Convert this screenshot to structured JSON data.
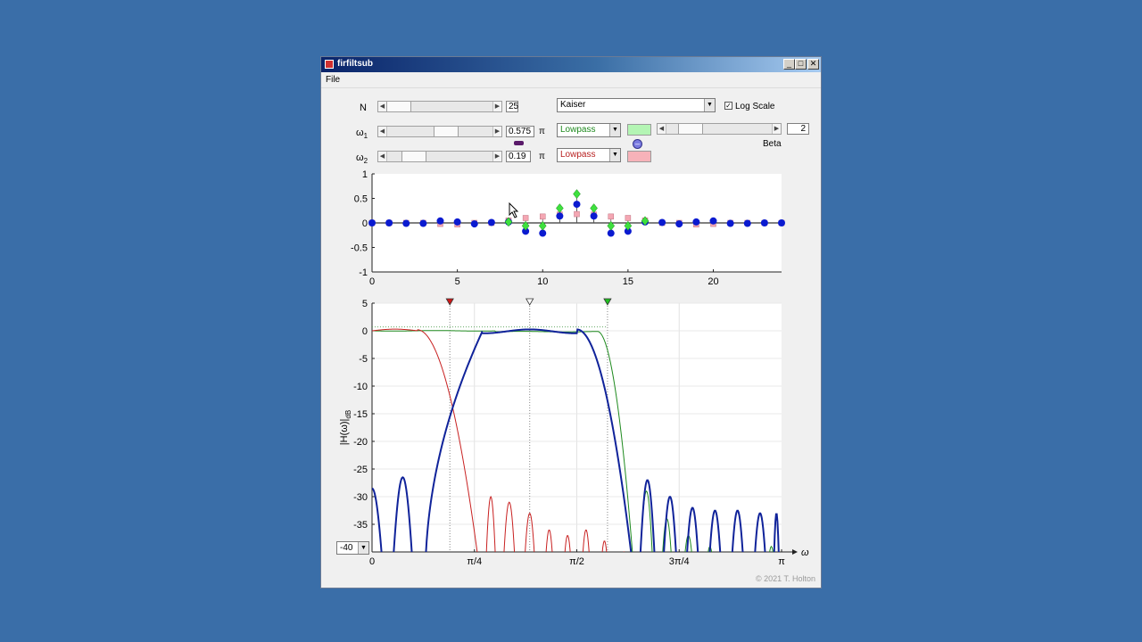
{
  "window": {
    "title": "firfiltsub",
    "menu_file": "File",
    "minimize": "_",
    "maximize": "□",
    "close": "✕",
    "copyright": "© 2021 T. Holton"
  },
  "controls": {
    "n_label": "N",
    "n_value": "25",
    "w1_label": "ω",
    "w1_sub": "1",
    "w1_value": "0.575",
    "w1_unit": "π",
    "w2_label": "ω",
    "w2_sub": "2",
    "w2_value": "0.19",
    "w2_unit": "π",
    "window_type": "Kaiser",
    "log_scale_label": "Log Scale",
    "log_scale_checked": "✓",
    "filter1_type": "Lowpass",
    "filter2_type": "Lowpass",
    "beta_label": "Beta",
    "beta_value": "2",
    "swatch1_color": "#b4f5b4",
    "swatch2_color": "#f7b2b9",
    "ylim_value": "-40",
    "slider_n": 0.0,
    "slider_w1": 0.575,
    "slider_w2": 0.19,
    "slider_beta": 0.15
  },
  "chart_data": [
    {
      "type": "scatter",
      "name": "impulse-response",
      "x": [
        0,
        1,
        2,
        3,
        4,
        5,
        6,
        7,
        8,
        9,
        10,
        11,
        12,
        13,
        14,
        15,
        16,
        17,
        18,
        19,
        20,
        21,
        22,
        23,
        24
      ],
      "series": [
        {
          "values": [
            0.0,
            0.0,
            -0.01,
            -0.01,
            0.04,
            0.02,
            -0.02,
            0.01,
            0.02,
            -0.17,
            -0.21,
            0.14,
            0.38,
            0.14,
            -0.21,
            -0.17,
            0.02,
            0.01,
            -0.02,
            0.02,
            0.04,
            -0.01,
            -0.01,
            0.0,
            0.0
          ],
          "color": "#0a1ad0"
        },
        {
          "values": [
            0.0,
            0.0,
            0.0,
            0.0,
            0.0,
            0.0,
            0.0,
            0.0,
            0.02,
            -0.06,
            -0.06,
            0.3,
            0.59,
            0.3,
            -0.06,
            -0.06,
            0.04,
            0.0,
            0.0,
            0.0,
            0.0,
            0.0,
            0.0,
            0.0,
            0.0
          ],
          "color": "#3ee03e"
        },
        {
          "values": [
            0.0,
            0.0,
            0.0,
            0.0,
            -0.02,
            -0.03,
            0.0,
            0.0,
            0.05,
            0.1,
            0.13,
            0.17,
            0.18,
            0.17,
            0.13,
            0.1,
            0.05,
            0.0,
            0.0,
            -0.03,
            -0.02,
            0.0,
            0.0,
            0.0,
            0.0
          ],
          "color": "#f4a7b3"
        }
      ],
      "xlim": [
        0,
        24
      ],
      "ylim": [
        -1,
        1
      ],
      "xticks": [
        "0",
        "5",
        "10",
        "15",
        "20"
      ],
      "yticks": [
        "1",
        "0.5",
        "0",
        "-0.5",
        "-1"
      ]
    },
    {
      "type": "line",
      "name": "magnitude-response",
      "ylabel": "|H(ω)|",
      "ylabel_sub": "dB",
      "xlabel": "ω",
      "xlim": [
        0,
        1
      ],
      "ylim": [
        -40,
        5
      ],
      "xticks": [
        "0",
        "π/4",
        "π/2",
        "3π/4",
        "π"
      ],
      "yticks": [
        "5",
        "0",
        "-5",
        "-10",
        "-15",
        "-20",
        "-25",
        "-30",
        "-35"
      ],
      "markers": [
        {
          "x": 0.19,
          "color": "#d01818"
        },
        {
          "x": 0.385,
          "color": "#ffffff"
        },
        {
          "x": 0.575,
          "color": "#20c020"
        }
      ],
      "series": [
        {
          "name": "bandpass",
          "color": "#10239a"
        },
        {
          "name": "lowpass-w1",
          "color": "#1e8a1e"
        },
        {
          "name": "lowpass-w2",
          "color": "#c82020"
        }
      ]
    }
  ]
}
